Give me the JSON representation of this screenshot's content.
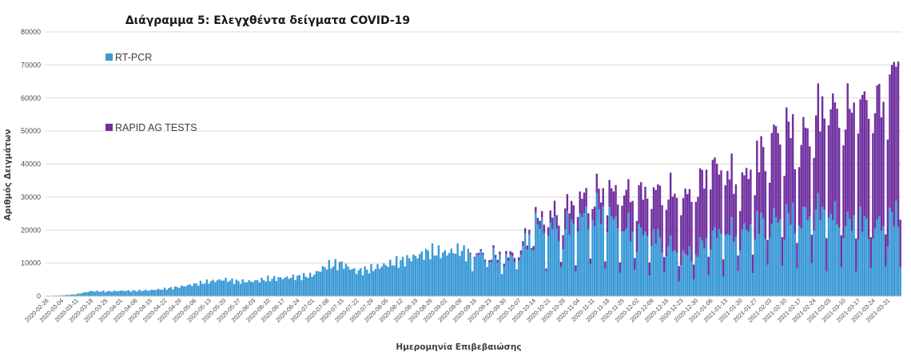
{
  "chart_data": {
    "type": "bar",
    "stacked": true,
    "title": "Διάγραμμα 5: Ελεγχθέντα δείγματα COVID-19",
    "xlabel": "Ημερομηνία Επιβεβαιώσης",
    "ylabel": "Αριθμός Δειγμάτων",
    "ylim": [
      0,
      80000
    ],
    "yticks": [
      0,
      10000,
      20000,
      30000,
      40000,
      50000,
      60000,
      70000,
      80000
    ],
    "grid": true,
    "legend_position": "top-left",
    "x_start": "2020-02-26",
    "x_end": "2021-04-06",
    "x_tick_labels": [
      "2020-02-26",
      "2020-03-04",
      "2020-03-11",
      "2020-03-18",
      "2020-03-25",
      "2020-04-01",
      "2020-04-08",
      "2020-04-15",
      "2020-04-22",
      "2020-04-29",
      "2020-05-06",
      "2020-05-13",
      "2020-05-20",
      "2020-05-27",
      "2020-06-03",
      "2020-06-10",
      "2020-06-17",
      "2020-06-24",
      "2020-07-01",
      "2020-07-08",
      "2020-07-15",
      "2020-07-22",
      "2020-07-29",
      "2020-08-05",
      "2020-08-12",
      "2020-08-19",
      "2020-08-26",
      "2020-09-02",
      "2020-09-09",
      "2020-09-16",
      "2020-09-23",
      "2020-09-30",
      "2020-10-07",
      "2020-10-14",
      "2020-10-21",
      "2020-10-28",
      "2020-11-04",
      "2020-11-11",
      "2020-11-18",
      "2020-11-25",
      "2020-12-02",
      "2020-12-09",
      "2020-12-16",
      "2020-12-23",
      "2020-12-30",
      "2021-01-06",
      "2021-01-13",
      "2021-01-20",
      "2021-01-27",
      "2021-02-03",
      "2021-02-10",
      "2021-02-17",
      "2021-02-24",
      "2021-03-03",
      "2021-03-10",
      "2021-03-17",
      "2021-03-24",
      "2021-03-31"
    ],
    "series": [
      {
        "name": "RT-PCR",
        "color": "#3a9ad6",
        "anchors": [
          [
            "2020-02-26",
            100
          ],
          [
            "2020-03-04",
            200
          ],
          [
            "2020-03-11",
            600
          ],
          [
            "2020-03-18",
            1500
          ],
          [
            "2020-03-25",
            1400
          ],
          [
            "2020-04-01",
            1600
          ],
          [
            "2020-04-08",
            1600
          ],
          [
            "2020-04-15",
            1800
          ],
          [
            "2020-04-22",
            2200
          ],
          [
            "2020-04-29",
            2800
          ],
          [
            "2020-05-06",
            3600
          ],
          [
            "2020-05-13",
            4400
          ],
          [
            "2020-05-20",
            5000
          ],
          [
            "2020-05-27",
            4400
          ],
          [
            "2020-06-03",
            4500
          ],
          [
            "2020-06-10",
            5200
          ],
          [
            "2020-06-17",
            5500
          ],
          [
            "2020-06-24",
            5800
          ],
          [
            "2020-07-01",
            6300
          ],
          [
            "2020-07-08",
            9200
          ],
          [
            "2020-07-15",
            9800
          ],
          [
            "2020-07-22",
            7500
          ],
          [
            "2020-07-29",
            8200
          ],
          [
            "2020-08-05",
            9500
          ],
          [
            "2020-08-12",
            10500
          ],
          [
            "2020-08-19",
            12000
          ],
          [
            "2020-08-26",
            13500
          ],
          [
            "2020-09-02",
            13000
          ],
          [
            "2020-09-09",
            14000
          ],
          [
            "2020-09-16",
            12000
          ],
          [
            "2020-09-23",
            11500
          ],
          [
            "2020-09-30",
            10500
          ],
          [
            "2020-10-07",
            11500
          ],
          [
            "2020-10-14",
            20000
          ],
          [
            "2020-10-21",
            20500
          ],
          [
            "2020-10-28",
            19000
          ],
          [
            "2020-11-04",
            22000
          ],
          [
            "2020-11-11",
            24500
          ],
          [
            "2020-11-18",
            23500
          ],
          [
            "2020-11-25",
            20000
          ],
          [
            "2020-12-02",
            18500
          ],
          [
            "2020-12-09",
            17500
          ],
          [
            "2020-12-16",
            15500
          ],
          [
            "2020-12-23",
            11500
          ],
          [
            "2020-12-30",
            13000
          ],
          [
            "2021-01-06",
            17500
          ],
          [
            "2021-01-13",
            18500
          ],
          [
            "2021-01-20",
            18000
          ],
          [
            "2021-01-27",
            20500
          ],
          [
            "2021-02-03",
            21500
          ],
          [
            "2021-02-10",
            23000
          ],
          [
            "2021-02-17",
            22000
          ],
          [
            "2021-02-24",
            25000
          ],
          [
            "2021-03-03",
            24000
          ],
          [
            "2021-03-10",
            21000
          ],
          [
            "2021-03-17",
            21500
          ],
          [
            "2021-03-24",
            20000
          ],
          [
            "2021-03-31",
            21500
          ],
          [
            "2021-04-06",
            24000
          ]
        ]
      },
      {
        "name": "RAPID AG TESTS",
        "color": "#7030a0",
        "start": "2020-09-14",
        "anchors": [
          [
            "2020-09-14",
            400
          ],
          [
            "2020-09-30",
            900
          ],
          [
            "2020-10-07",
            1200
          ],
          [
            "2020-10-14",
            1500
          ],
          [
            "2020-10-21",
            3000
          ],
          [
            "2020-10-28",
            5500
          ],
          [
            "2020-11-04",
            6000
          ],
          [
            "2020-11-11",
            5000
          ],
          [
            "2020-11-18",
            7000
          ],
          [
            "2020-11-25",
            10000
          ],
          [
            "2020-12-02",
            11500
          ],
          [
            "2020-12-09",
            13000
          ],
          [
            "2020-12-16",
            16000
          ],
          [
            "2020-12-23",
            17000
          ],
          [
            "2020-12-30",
            18000
          ],
          [
            "2021-01-06",
            21000
          ],
          [
            "2021-01-13",
            18000
          ],
          [
            "2021-01-20",
            15000
          ],
          [
            "2021-01-27",
            18000
          ],
          [
            "2021-02-03",
            24000
          ],
          [
            "2021-02-10",
            27000
          ],
          [
            "2021-02-17",
            23000
          ],
          [
            "2021-02-24",
            27000
          ],
          [
            "2021-03-03",
            33000
          ],
          [
            "2021-03-10",
            32000
          ],
          [
            "2021-03-17",
            36000
          ],
          [
            "2021-03-24",
            36000
          ],
          [
            "2021-03-31",
            37000
          ],
          [
            "2021-04-06",
            51000
          ]
        ]
      }
    ]
  }
}
